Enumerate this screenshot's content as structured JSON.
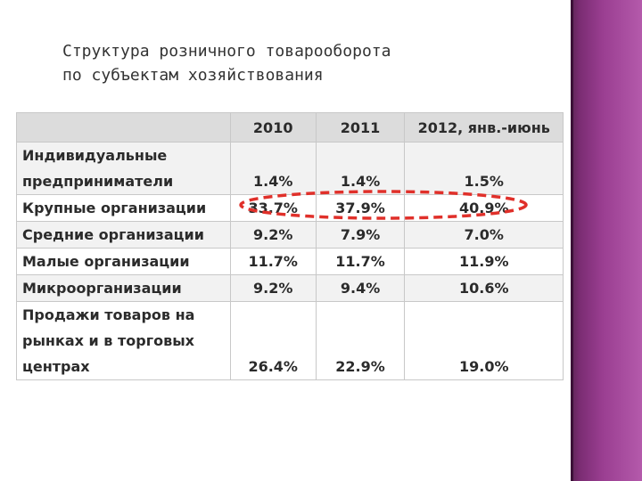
{
  "title": {
    "line1": "Структура розничного товарооборота",
    "line2": "по субъектам хозяйствования"
  },
  "table": {
    "headers": [
      "",
      "2010",
      "2011",
      "2012, янв.-июнь"
    ],
    "rows": [
      {
        "label_lines": [
          "Индивидуальные",
          "предприниматели"
        ],
        "values": [
          "1.4%",
          "1.4%",
          "1.5%"
        ]
      },
      {
        "label_lines": [
          "Крупные организации"
        ],
        "values": [
          "33.7%",
          "37.9%",
          "40.9%"
        ]
      },
      {
        "label_lines": [
          "Средние организации"
        ],
        "values": [
          "9.2%",
          "7.9%",
          "7.0%"
        ]
      },
      {
        "label_lines": [
          "Малые организации"
        ],
        "values": [
          "11.7%",
          "11.7%",
          "11.9%"
        ]
      },
      {
        "label_lines": [
          "Микроорганизации"
        ],
        "values": [
          "9.2%",
          "9.4%",
          "10.6%"
        ]
      },
      {
        "label_lines": [
          "Продажи товаров на",
          "рынках и в торговых",
          "центрах"
        ],
        "values": [
          "26.4%",
          "22.9%",
          "19.0%"
        ]
      }
    ]
  },
  "colors": {
    "highlight": "#e0302a",
    "side_band": "#9a3e91",
    "header_bg": "#dcdcdc"
  }
}
